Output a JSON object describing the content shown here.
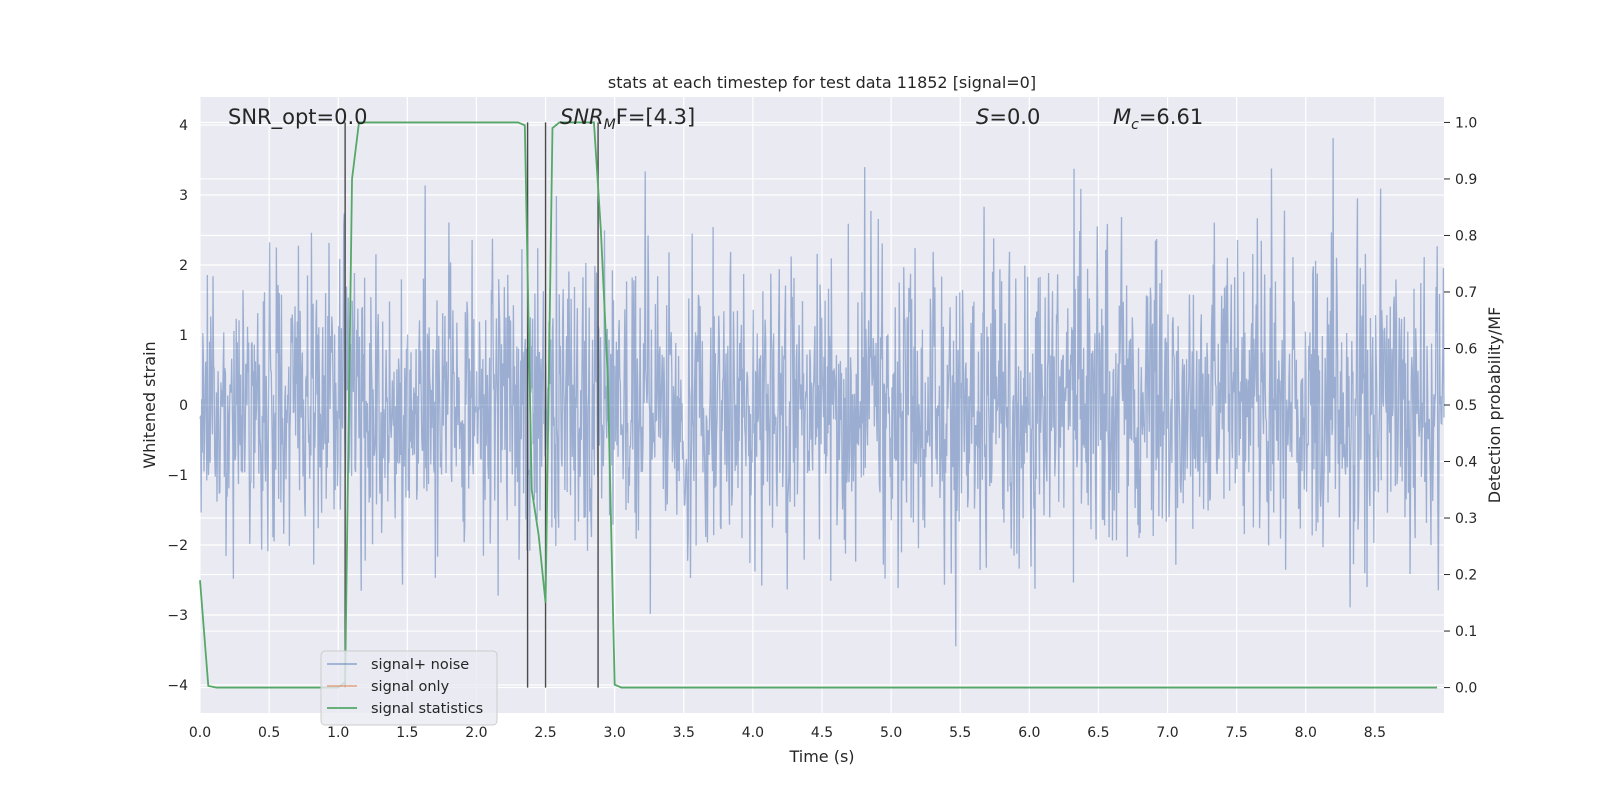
{
  "chart_data": {
    "type": "line",
    "title": "stats at each timestep for test data 11852 [signal=0]",
    "xlabel": "Time (s)",
    "ylabel": "Whitened strain",
    "y2label": "Detection probability/MF",
    "xlim": [
      0.0,
      9.0
    ],
    "ylim": [
      -4.4,
      4.4
    ],
    "y2lim": [
      -0.045,
      1.045
    ],
    "x_ticks": [
      "0.0",
      "0.5",
      "1.0",
      "1.5",
      "2.0",
      "2.5",
      "3.0",
      "3.5",
      "4.0",
      "4.5",
      "5.0",
      "5.5",
      "6.0",
      "6.5",
      "7.0",
      "7.5",
      "8.0",
      "8.5"
    ],
    "y_ticks": [
      "4",
      "3",
      "2",
      "1",
      "0",
      "−1",
      "−2",
      "−3",
      "−4"
    ],
    "y2_ticks": [
      "1.0",
      "0.9",
      "0.8",
      "0.7",
      "0.6",
      "0.5",
      "0.4",
      "0.3",
      "0.2",
      "0.1",
      "0.0"
    ],
    "grid": true,
    "legend_position": "lower-left",
    "annotations": {
      "snr_opt": "SNR_opt=0.0",
      "snr_mf_base": "SNR",
      "snr_mf_sub": "M",
      "snr_mf_rest": "F=[4.3]",
      "s_var": "S",
      "s_rest": "=0.0",
      "mc_var": "M",
      "mc_sub": "c",
      "mc_rest": "=6.61"
    },
    "vertical_lines_x": [
      1.05,
      2.37,
      2.5,
      2.88
    ],
    "series": [
      {
        "name": "signal+ noise",
        "color": "#4c72b0",
        "description": "whitened strain, noise only, amplitude roughly within ±3.5",
        "noise_std": 1.05,
        "duration": 9.0
      },
      {
        "name": "signal only",
        "color": "#dd8452",
        "values": []
      },
      {
        "name": "signal statistics",
        "color": "#55a868",
        "axis": "right",
        "x": [
          0.0,
          0.06,
          0.12,
          1.0,
          1.05,
          1.1,
          1.15,
          2.3,
          2.35,
          2.4,
          2.45,
          2.5,
          2.55,
          2.6,
          2.65,
          2.85,
          2.9,
          2.95,
          3.0,
          3.05,
          3.1,
          8.95
        ],
        "values": [
          0.19,
          0.003,
          0.0,
          0.0,
          0.01,
          0.9,
          1.0,
          1.0,
          0.995,
          0.35,
          0.27,
          0.15,
          0.99,
          1.0,
          1.0,
          1.0,
          0.81,
          0.55,
          0.005,
          0.0,
          0.0,
          0.0
        ]
      }
    ]
  },
  "colors": {
    "plot_background": "#eaeaf2",
    "grid": "#ffffff",
    "strain": "#4c72b0",
    "signal_only": "#dd8452",
    "statistics": "#55a868",
    "vline": "#4a4a4a"
  }
}
